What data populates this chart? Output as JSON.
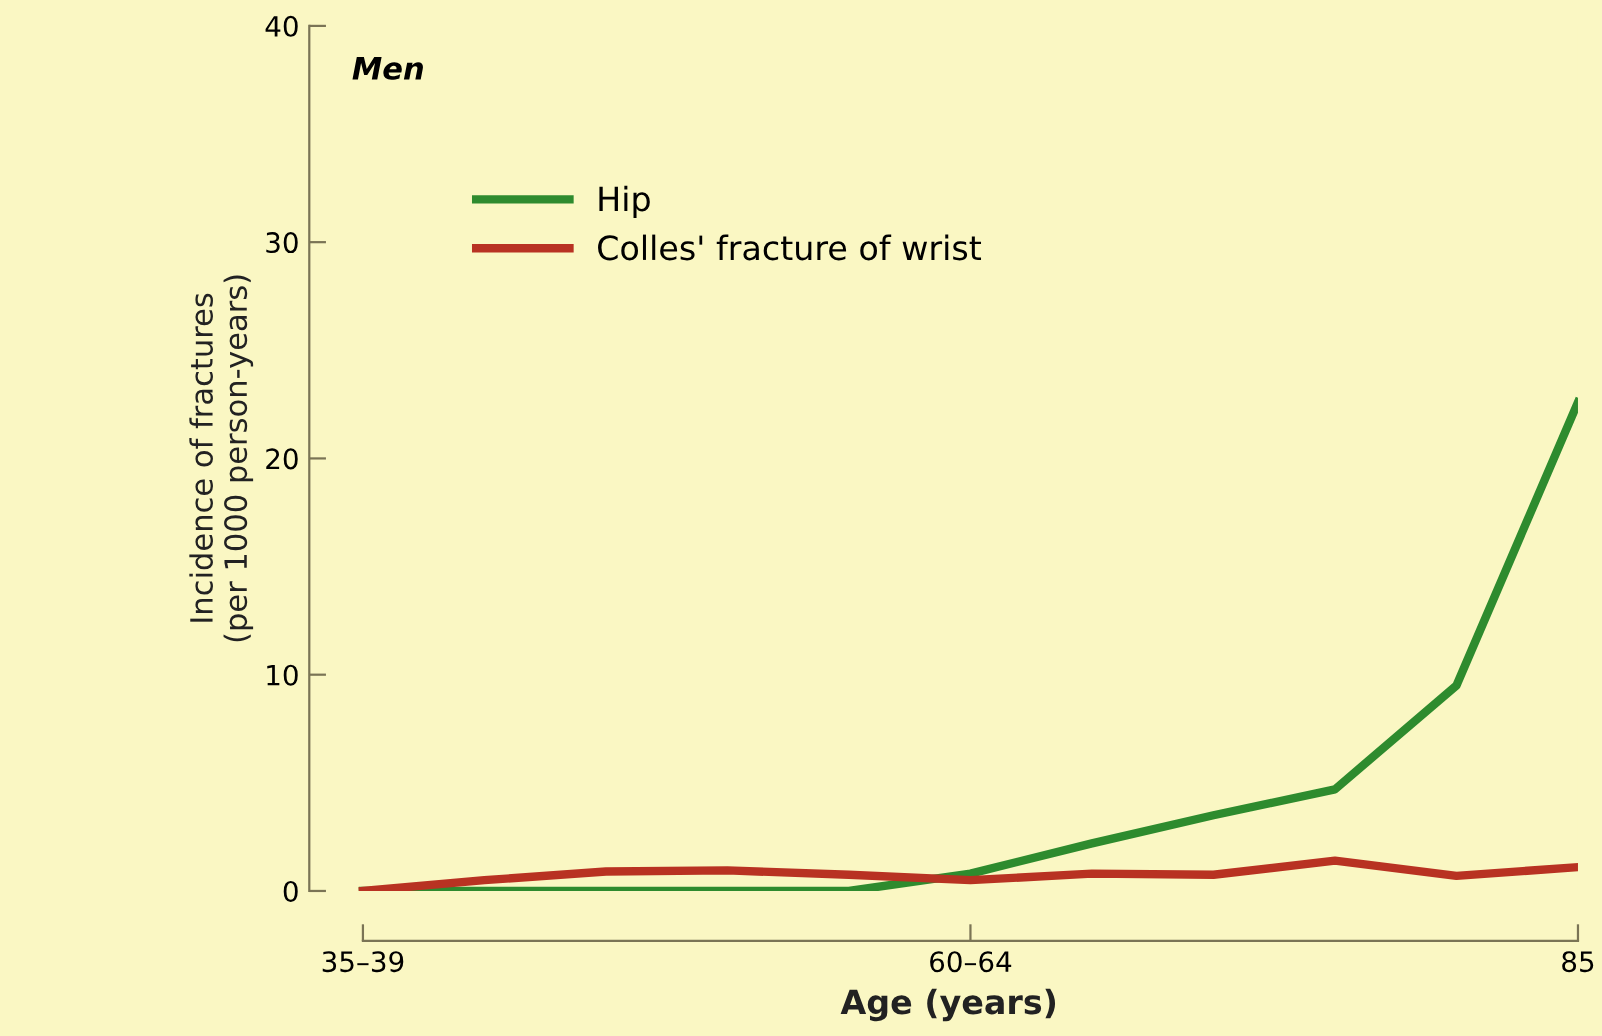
{
  "chart_data": {
    "type": "line",
    "title": "Men",
    "xlabel": "Age (years)",
    "ylabel": "Incidence of fractures\n(per 1000 person-years)",
    "categories": [
      "35–39",
      null,
      null,
      null,
      null,
      "60–64",
      null,
      null,
      null,
      null,
      "85"
    ],
    "series": [
      {
        "name": "Hip",
        "color": "#2e8b2e",
        "values": [
          0,
          0,
          0,
          0,
          0,
          0.8,
          2.2,
          3.5,
          4.7,
          9.5,
          22.6
        ]
      },
      {
        "name": "Colles' fracture of wrist",
        "color": "#b83222",
        "values": [
          0,
          0.5,
          0.9,
          0.95,
          0.75,
          0.5,
          0.8,
          0.75,
          1.4,
          0.7,
          1.1
        ]
      }
    ],
    "ylim": [
      0,
      40
    ],
    "yticks": [
      0,
      10,
      20,
      30,
      40
    ],
    "grid": false,
    "legend": "top left",
    "marker": "none",
    "line_style": "solid"
  }
}
